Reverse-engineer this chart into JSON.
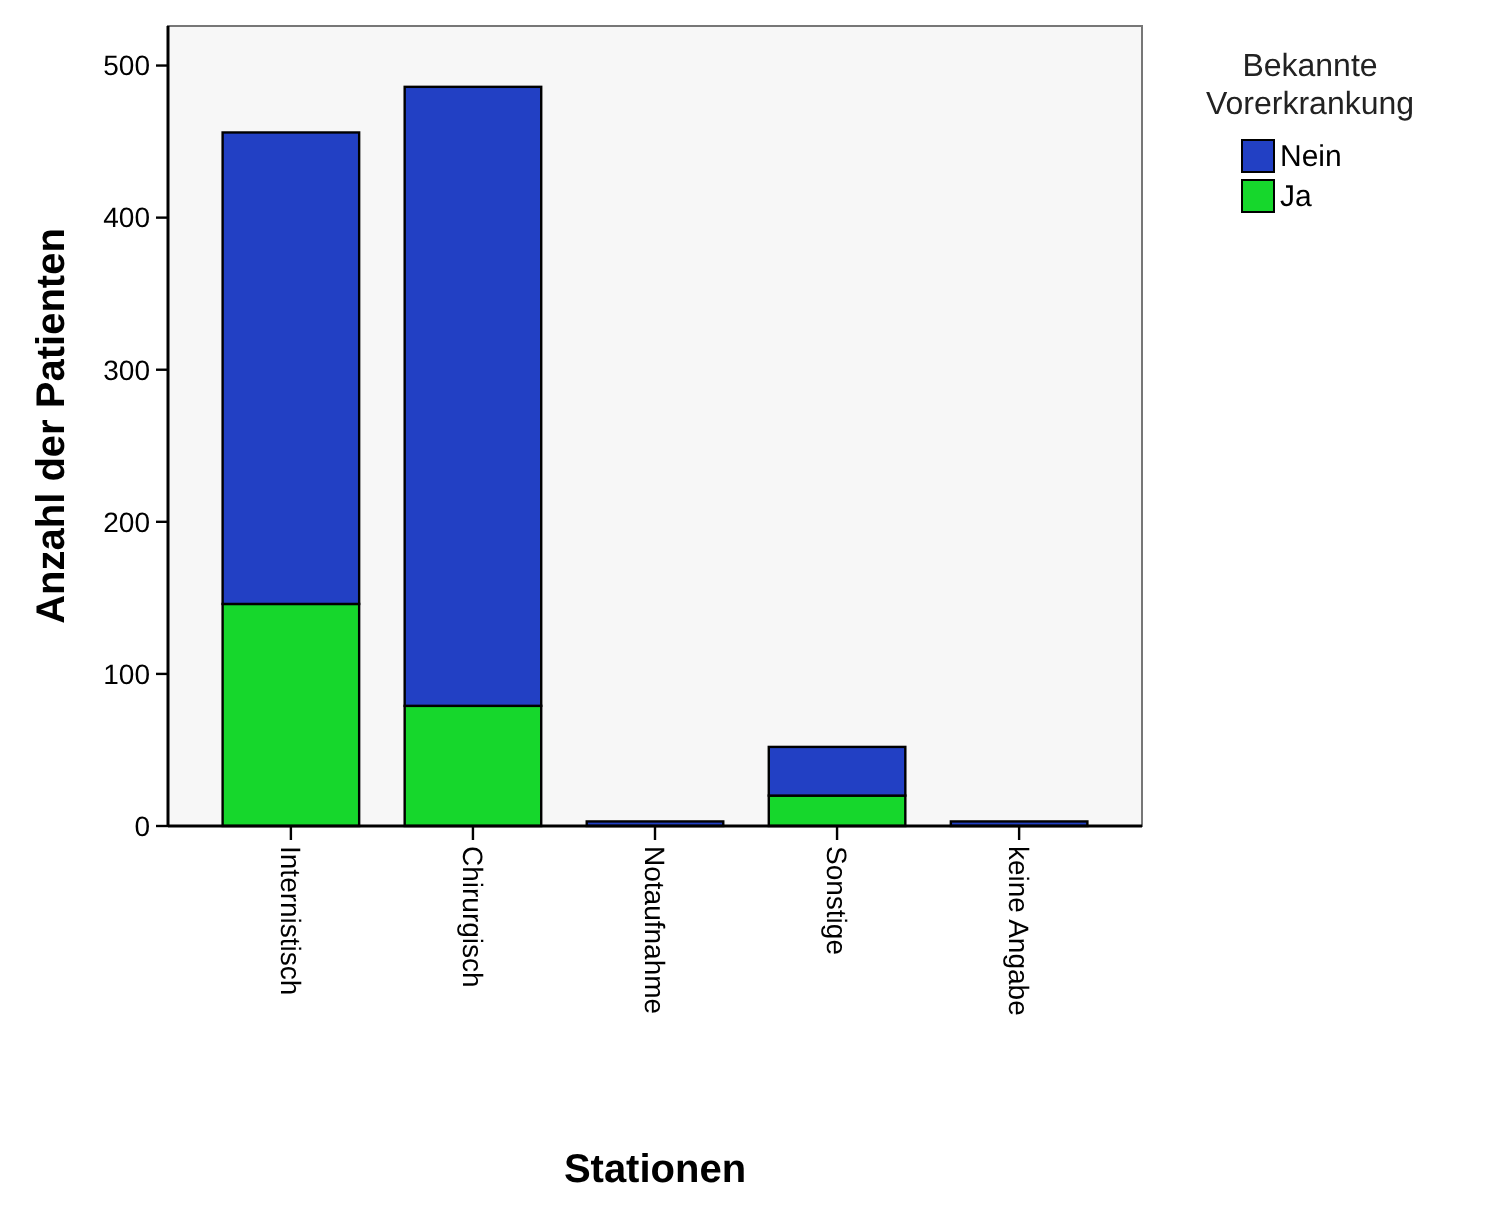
{
  "chart_data": {
    "type": "bar",
    "stacked": true,
    "xlabel": "Stationen",
    "ylabel": "Anzahl der Patienten",
    "legend_title": "Bekannte Vorerkrankung",
    "legend": "top right",
    "categories": [
      "Internistisch",
      "Chirurgisch",
      "Notaufnahme",
      "Sonstige",
      "keine Angabe"
    ],
    "series": [
      {
        "name": "Ja",
        "color": "#16d72c",
        "values": [
          146,
          79,
          null,
          20,
          null
        ]
      },
      {
        "name": "Nein",
        "color": "#2240c4",
        "values": [
          310,
          407,
          3,
          32,
          3
        ]
      }
    ],
    "ylim": [
      0,
      526
    ],
    "yticks": [
      0,
      100,
      200,
      300,
      400,
      500
    ]
  }
}
